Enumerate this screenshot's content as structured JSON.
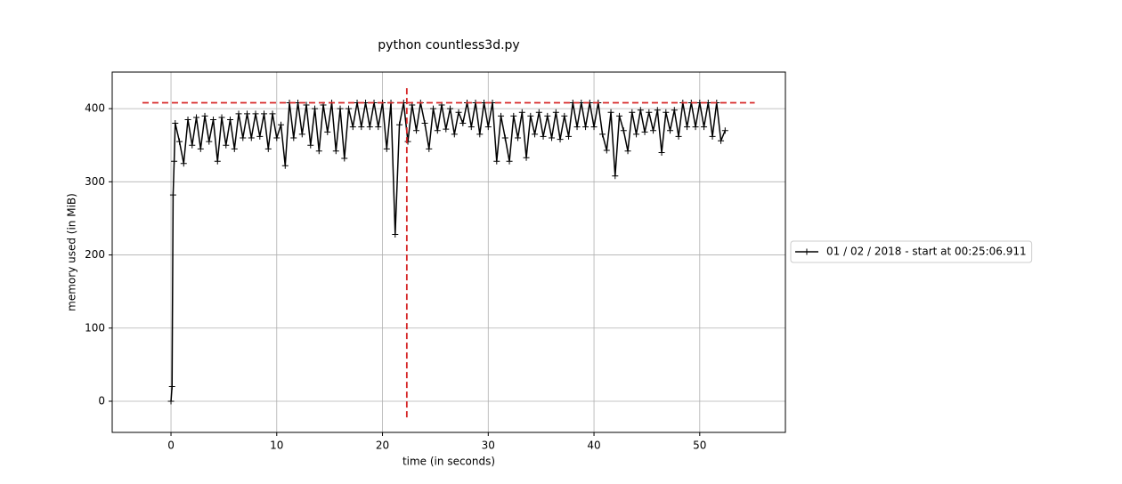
{
  "chart_data": {
    "type": "line",
    "title": "python countless3d.py",
    "xlabel": "time (in seconds)",
    "ylabel": "memory used (in MiB)",
    "x": [
      0,
      0.1,
      0.2,
      0.3,
      0.4,
      0.8,
      1.2,
      1.6,
      2.0,
      2.4,
      2.8,
      3.2,
      3.6,
      4.0,
      4.4,
      4.8,
      5.2,
      5.6,
      6.0,
      6.4,
      6.8,
      7.2,
      7.6,
      8.0,
      8.4,
      8.8,
      9.2,
      9.6,
      10.0,
      10.4,
      10.8,
      11.2,
      11.6,
      12.0,
      12.4,
      12.8,
      13.2,
      13.6,
      14.0,
      14.4,
      14.8,
      15.2,
      15.6,
      16.0,
      16.4,
      16.8,
      17.2,
      17.6,
      18.0,
      18.4,
      18.8,
      19.2,
      19.6,
      20.0,
      20.4,
      20.8,
      21.2,
      21.6,
      22.0,
      22.4,
      22.8,
      23.2,
      23.6,
      24.0,
      24.4,
      24.8,
      25.2,
      25.6,
      26.0,
      26.4,
      26.8,
      27.2,
      27.6,
      28.0,
      28.4,
      28.8,
      29.2,
      29.6,
      30.0,
      30.4,
      30.8,
      31.2,
      31.6,
      32.0,
      32.4,
      32.8,
      33.2,
      33.6,
      34.0,
      34.4,
      34.8,
      35.2,
      35.6,
      36.0,
      36.4,
      36.8,
      37.2,
      37.6,
      38.0,
      38.4,
      38.8,
      39.2,
      39.6,
      40.0,
      40.4,
      40.8,
      41.2,
      41.6,
      42.0,
      42.4,
      42.8,
      43.2,
      43.6,
      44.0,
      44.4,
      44.8,
      45.2,
      45.6,
      46.0,
      46.4,
      46.8,
      47.2,
      47.6,
      48.0,
      48.4,
      48.8,
      49.2,
      49.6,
      50.0,
      50.4,
      50.8,
      51.2,
      51.6,
      52.0,
      52.4
    ],
    "series": [
      {
        "name": "01 / 02 / 2018 - start at 00:25:06.911",
        "color": "#000000",
        "values": [
          0,
          20,
          282,
          328,
          380,
          355,
          325,
          385,
          350,
          388,
          345,
          390,
          355,
          385,
          328,
          388,
          350,
          385,
          345,
          393,
          360,
          393,
          360,
          393,
          362,
          393,
          345,
          393,
          360,
          378,
          322,
          408,
          360,
          408,
          365,
          405,
          350,
          400,
          342,
          405,
          368,
          408,
          342,
          400,
          332,
          400,
          375,
          408,
          375,
          408,
          375,
          408,
          375,
          408,
          345,
          408,
          228,
          378,
          408,
          355,
          405,
          370,
          408,
          380,
          345,
          400,
          370,
          405,
          372,
          400,
          365,
          395,
          380,
          408,
          375,
          408,
          365,
          408,
          375,
          408,
          328,
          390,
          360,
          328,
          390,
          360,
          395,
          333,
          390,
          365,
          395,
          362,
          390,
          360,
          395,
          358,
          390,
          362,
          408,
          375,
          408,
          375,
          408,
          375,
          408,
          365,
          343,
          395,
          308,
          390,
          370,
          342,
          395,
          365,
          398,
          368,
          395,
          370,
          398,
          340,
          395,
          370,
          398,
          362,
          408,
          375,
          408,
          375,
          408,
          375,
          408,
          362,
          408,
          356,
          370
        ]
      }
    ],
    "reference_lines": [
      {
        "orientation": "horizontal",
        "value": 408,
        "from": -2.7,
        "to": 55.2,
        "color": "#d62728"
      },
      {
        "orientation": "vertical",
        "value": 22.3,
        "from": -22,
        "to": 428,
        "color": "#d62728"
      }
    ],
    "xlim": [
      -5.56,
      58.1
    ],
    "ylim": [
      -42.6,
      450
    ],
    "xticks": [
      0,
      10,
      20,
      30,
      40,
      50
    ],
    "yticks": [
      0,
      100,
      200,
      300,
      400
    ],
    "grid": true,
    "legend": "right-outside"
  }
}
